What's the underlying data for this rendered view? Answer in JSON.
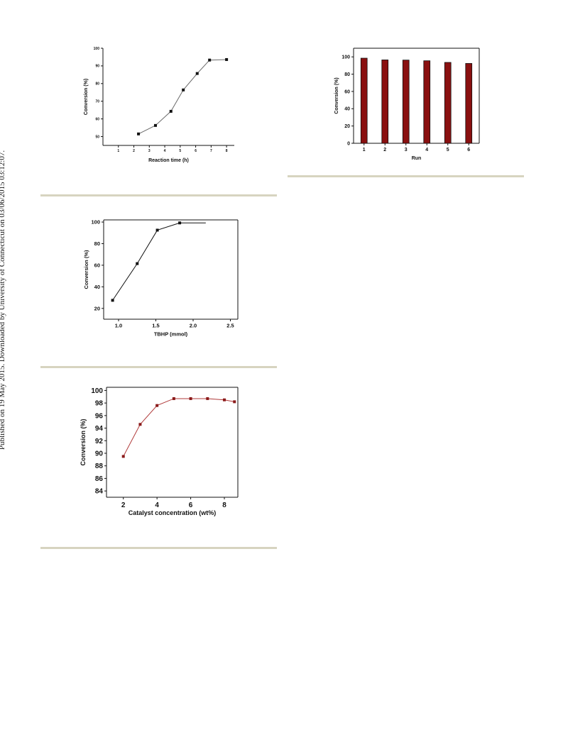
{
  "side_note": "Published on 19 May 2015. Downloaded by University of Connecticut on 03/06/2015 03:12:07.",
  "chart_data": [
    {
      "id": "time",
      "type": "line",
      "xlabel": "Reaction time (h)",
      "ylabel": "Conversion (%)",
      "xlim": [
        0,
        8.5
      ],
      "ylim": [
        45,
        100
      ],
      "xticks": [
        1,
        2,
        3,
        4,
        5,
        6,
        7,
        8
      ],
      "yticks": [
        50,
        60,
        70,
        80,
        90,
        100
      ],
      "color": "#6b6b6b",
      "series": [
        {
          "x": [
            2.3,
            3.4,
            4.4,
            5.2,
            6.1,
            6.9,
            8.0
          ],
          "values": [
            51.5,
            56.3,
            64.3,
            76.4,
            85.7,
            93.3,
            93.6
          ]
        }
      ]
    },
    {
      "id": "run",
      "type": "bar",
      "xlabel": "Run",
      "ylabel": "Conversion (%)",
      "categories": [
        "1",
        "2",
        "3",
        "4",
        "5",
        "6"
      ],
      "ylim": [
        0,
        110
      ],
      "yticks": [
        0,
        20,
        40,
        60,
        80,
        100
      ],
      "color": "#8a1010",
      "values": [
        98.5,
        96.5,
        96.3,
        95.5,
        93.6,
        92.4
      ]
    },
    {
      "id": "tbhp",
      "type": "line",
      "xlabel": "TBHP (mmol)",
      "ylabel": "Conversion (%)",
      "xlim": [
        0.8,
        2.6
      ],
      "ylim": [
        10,
        102
      ],
      "xticks": [
        1.0,
        1.5,
        2.0,
        2.5
      ],
      "xtick_labels": [
        "1.0",
        "1.5",
        "2.0",
        "2.5"
      ],
      "yticks": [
        20,
        40,
        60,
        80,
        100
      ],
      "color": "#111111",
      "series": [
        {
          "x": [
            0.92,
            1.25,
            1.52,
            1.82
          ],
          "values": [
            27.5,
            61.5,
            92.5,
            99.2
          ]
        }
      ]
    },
    {
      "id": "catalyst",
      "type": "line",
      "xlabel": "Catalyst concentration (wt%)",
      "ylabel": "Conversion (%)",
      "xlim": [
        1,
        8.8
      ],
      "ylim": [
        83,
        100.5
      ],
      "xticks": [
        2,
        4,
        6,
        8
      ],
      "yticks": [
        84,
        86,
        88,
        90,
        92,
        94,
        96,
        98,
        100
      ],
      "color": "#b03a3a",
      "series": [
        {
          "x": [
            2,
            3,
            4,
            5,
            6,
            7,
            8,
            8.6
          ],
          "values": [
            89.5,
            94.6,
            97.6,
            98.7,
            98.7,
            98.7,
            98.5,
            98.2
          ]
        }
      ]
    }
  ]
}
